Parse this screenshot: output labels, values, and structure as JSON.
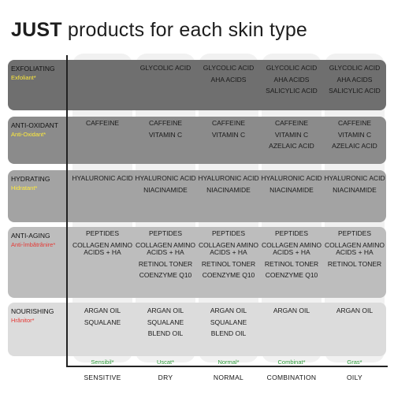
{
  "title": {
    "bold": "JUST",
    "rest": " products for each skin type"
  },
  "columns": [
    {
      "label": "SENSITIVE",
      "translation": "Sensibil*"
    },
    {
      "label": "DRY",
      "translation": "Uscat*"
    },
    {
      "label": "NORMAL",
      "translation": "Normal*"
    },
    {
      "label": "COMBINATION",
      "translation": "Combinat*"
    },
    {
      "label": "OILY",
      "translation": "Gras*"
    }
  ],
  "categories": [
    {
      "name": "EXFOLIATING",
      "translation": "Exfoliant*",
      "cells": [
        [],
        [
          "GLYCOLIC ACID"
        ],
        [
          "GLYCOLIC ACID",
          "AHA ACIDS"
        ],
        [
          "GLYCOLIC ACID",
          "AHA ACIDS",
          "SALICYLIC ACID"
        ],
        [
          "GLYCOLIC ACID",
          "AHA ACIDS",
          "SALICYLIC ACID"
        ]
      ]
    },
    {
      "name": "ANTI-OXIDANT",
      "translation": "Anti-Oxidant*",
      "cells": [
        [
          "CAFFEINE"
        ],
        [
          "CAFFEINE",
          "VITAMIN C"
        ],
        [
          "CAFFEINE",
          "VITAMIN C"
        ],
        [
          "CAFFEINE",
          "VITAMIN C",
          "AZELAIC ACID"
        ],
        [
          "CAFFEINE",
          "VITAMIN C",
          "AZELAIC ACID"
        ]
      ]
    },
    {
      "name": "HYDRATING",
      "translation": "Hidratant*",
      "cells": [
        [
          "HYALURONIC ACID"
        ],
        [
          "HYALURONIC ACID",
          "NIACINAMIDE"
        ],
        [
          "HYALURONIC ACID",
          "NIACINAMIDE"
        ],
        [
          "HYALURONIC ACID",
          "NIACINAMIDE"
        ],
        [
          "HYALURONIC ACID",
          "NIACINAMIDE"
        ]
      ]
    },
    {
      "name": "ANTI-AGING",
      "translation": "Anti-îmbătrânire*",
      "cells": [
        [
          "PEPTIDES",
          "COLLAGEN AMINO ACIDS + HA"
        ],
        [
          "PEPTIDES",
          "COLLAGEN AMINO ACIDS + HA",
          "RETINOL TONER",
          "COENZYME Q10"
        ],
        [
          "PEPTIDES",
          "COLLAGEN AMINO ACIDS + HA",
          "RETINOL TONER",
          "COENZYME Q10"
        ],
        [
          "PEPTIDES",
          "COLLAGEN AMINO ACIDS + HA",
          "RETINOL TONER",
          "COENZYME Q10"
        ],
        [
          "PEPTIDES",
          "COLLAGEN AMINO ACIDS + HA",
          "RETINOL TONER"
        ]
      ]
    },
    {
      "name": "NOURISHING",
      "translation": "Hrănitor*",
      "cells": [
        [
          "ARGAN OIL",
          "SQUALANE"
        ],
        [
          "ARGAN OIL",
          "SQUALANE",
          "BLEND OIL"
        ],
        [
          "ARGAN OIL",
          "SQUALANE",
          "BLEND OIL"
        ],
        [
          "ARGAN OIL"
        ],
        [
          "ARGAN OIL"
        ]
      ]
    }
  ],
  "colors": {
    "exfoliating_band": "#6f6f6f",
    "antioxidant_band": "#8b8b8b",
    "hydrating_band": "#a3a3a3",
    "antiaging_band": "#bdbdbd",
    "nourishing_band": "#dcdcdc",
    "translation_yellow": "#ffeb3b",
    "translation_red": "#e53935",
    "translation_green": "#2e9c3a"
  }
}
